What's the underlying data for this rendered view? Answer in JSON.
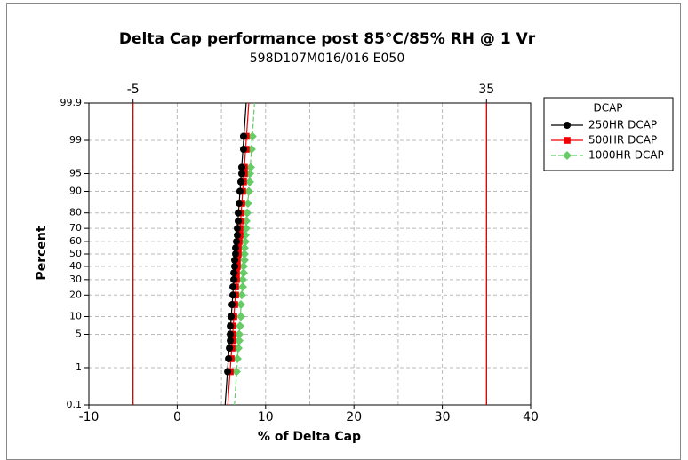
{
  "chart_data": {
    "type": "probability",
    "title": "Delta Cap performance post 85°C/85% RH @ 1 Vr",
    "subtitle": "598D107M016/016  E050",
    "x_label": "% of Delta Cap",
    "y_label": "Percent",
    "xlim": [
      -10,
      40
    ],
    "xticks": [
      -10,
      0,
      10,
      20,
      30,
      40
    ],
    "ylim": [
      0.1,
      99.9
    ],
    "yticks": [
      0.1,
      1,
      5,
      10,
      20,
      30,
      40,
      50,
      60,
      70,
      80,
      90,
      95,
      99,
      99.9
    ],
    "reference_lines": [
      -5,
      35
    ],
    "reference_color": "#cc0000",
    "grid": true,
    "legend_title": "DCAP",
    "legend_position": "right",
    "y": [
      0.8,
      1.6,
      2.7,
      3.8,
      5,
      7,
      10,
      15,
      20,
      25,
      30,
      35,
      40,
      45,
      50,
      55,
      60,
      65,
      70,
      75,
      80,
      85,
      90,
      93,
      95,
      96.2,
      98.4,
      99.2
    ],
    "series": [
      {
        "name": "250HR DCAP",
        "color": "#000000",
        "marker": "circle",
        "dash": false,
        "values": [
          5.7,
          5.8,
          5.9,
          6.0,
          6.0,
          6.0,
          6.1,
          6.2,
          6.3,
          6.3,
          6.4,
          6.4,
          6.5,
          6.5,
          6.6,
          6.6,
          6.7,
          6.8,
          6.8,
          6.9,
          6.9,
          7.0,
          7.1,
          7.2,
          7.3,
          7.3,
          7.5,
          7.5
        ]
      },
      {
        "name": "500HR DCAP",
        "color": "#ee0000",
        "marker": "square",
        "dash": false,
        "values": [
          6.0,
          6.1,
          6.2,
          6.3,
          6.3,
          6.3,
          6.4,
          6.5,
          6.6,
          6.6,
          6.7,
          6.7,
          6.8,
          6.8,
          6.9,
          6.9,
          7.0,
          7.1,
          7.1,
          7.2,
          7.2,
          7.3,
          7.4,
          7.5,
          7.6,
          7.6,
          7.8,
          7.8
        ]
      },
      {
        "name": "1000HR DCAP",
        "color": "#66cc66",
        "marker": "diamond",
        "dash": true,
        "values": [
          6.7,
          6.8,
          6.9,
          7.0,
          7.0,
          7.1,
          7.2,
          7.2,
          7.3,
          7.4,
          7.4,
          7.5,
          7.5,
          7.6,
          7.6,
          7.6,
          7.7,
          7.7,
          7.8,
          7.8,
          7.9,
          8.0,
          8.1,
          8.2,
          8.2,
          8.3,
          8.4,
          8.5
        ]
      }
    ]
  }
}
